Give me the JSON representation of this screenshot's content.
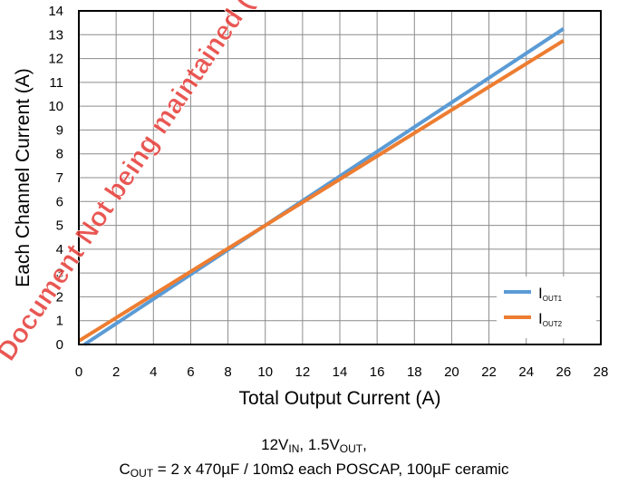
{
  "watermark": "Document Not being maintained (OBS)",
  "chart_data": {
    "type": "line",
    "xlabel": "Total Output Current (A)",
    "ylabel": "Each Channel Current (A)",
    "xlim": [
      0,
      28
    ],
    "ylim": [
      0,
      14
    ],
    "xticks": [
      "0",
      "2",
      "4",
      "6",
      "8",
      "10",
      "12",
      "14",
      "16",
      "18",
      "20",
      "22",
      "24",
      "26",
      "28"
    ],
    "yticks": [
      "0",
      "1",
      "2",
      "3",
      "4",
      "5",
      "6",
      "7",
      "8",
      "9",
      "10",
      "11",
      "12",
      "13",
      "14"
    ],
    "grid": true,
    "legend_position": "bottom-right",
    "series": [
      {
        "name": "I",
        "name_sub": "OUT1",
        "color": "#5b9bd5",
        "x": [
          0.3,
          26
        ],
        "y": [
          0,
          13.25
        ]
      },
      {
        "name": "I",
        "name_sub": "OUT2",
        "color": "#ed7d31",
        "x": [
          0,
          26
        ],
        "y": [
          0.15,
          12.75
        ]
      }
    ]
  },
  "caption": {
    "line1": [
      {
        "t": "12V"
      },
      {
        "t": "IN",
        "sub": true
      },
      {
        "t": ", 1.5V"
      },
      {
        "t": "OUT",
        "sub": true
      },
      {
        "t": ","
      }
    ],
    "line2": [
      {
        "t": "C"
      },
      {
        "t": "OUT",
        "sub": true
      },
      {
        "t": " = 2 x 470µF / 10mΩ each POSCAP, 100µF ceramic"
      }
    ]
  }
}
